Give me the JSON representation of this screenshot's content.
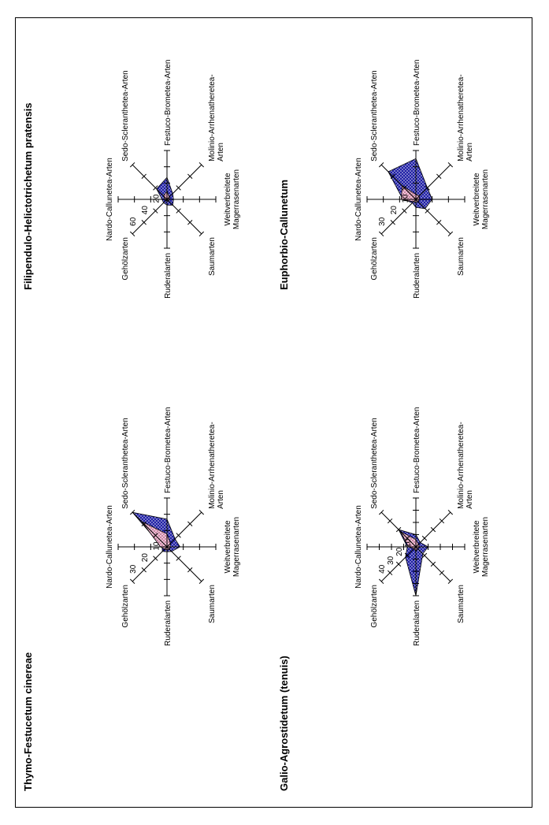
{
  "chart_data": [
    {
      "type": "radar",
      "title": "Thymo-Festucetum cinereae",
      "axes": [
        "Nardo-Callunetea-Arten",
        "Sedo-Scleranthetea-Arten",
        "Festuco-Brometea-Arten",
        "Molinio-Arrhenatheretea-Arten",
        "Weitverbreitete Magerrasenarten",
        "Saumarten",
        "Ruderalarten",
        "Gehölzarten"
      ],
      "ticks": [
        "10",
        "20",
        "30"
      ],
      "rmax": 30,
      "series": [
        {
          "fill": "#1f1fa5",
          "values": [
            3,
            30,
            17,
            7,
            8,
            4,
            3,
            4
          ]
        },
        {
          "fill": "#f2c2d8",
          "values": [
            4,
            22,
            8,
            3,
            2,
            2,
            2,
            2
          ]
        }
      ]
    },
    {
      "type": "radar",
      "title": "Filipendulo-Helictotrichetum pratensis",
      "axes": [
        "Nardo-Callunetea-Arten",
        "Sedo-Scleranthetea-Arten",
        "Festuco-Brometea-Arten",
        "Molinio-Arrhenatheretea-Arten",
        "Weitverbreitete Magerrasenarten",
        "Saumarten",
        "Ruderalarten",
        "Gehölzarten"
      ],
      "ticks": [
        "20",
        "40",
        "60"
      ],
      "rmax": 60,
      "series": [
        {
          "fill": "#1f1fa5",
          "values": [
            6,
            18,
            27,
            10,
            8,
            10,
            7,
            6
          ]
        },
        {
          "fill": "#f2c2d8",
          "values": [
            3,
            6,
            10,
            4,
            3,
            3,
            2,
            2
          ]
        }
      ]
    },
    {
      "type": "radar",
      "title": "Galio-Agrostidetum (tenuis)",
      "axes": [
        "Nardo-Callunetea-Arten",
        "Sedo-Scleranthetea-Arten",
        "Festuco-Brometea-Arten",
        "Molinio-Arrhenatheretea-Arten",
        "Weitverbreitete Magerrasenarten",
        "Saumarten",
        "Ruderalarten",
        "Gehölzarten"
      ],
      "ticks": [
        "10",
        "20",
        "30",
        "40"
      ],
      "rmax": 40,
      "series": [
        {
          "fill": "#1f1fa5",
          "values": [
            7,
            20,
            10,
            5,
            10,
            8,
            40,
            12
          ]
        },
        {
          "fill": "#f2c2d8",
          "values": [
            6,
            18,
            6,
            3,
            3,
            2,
            4,
            2
          ]
        }
      ]
    },
    {
      "type": "radar",
      "title": "Euphorbio-Callunetum",
      "axes": [
        "Nardo-Callunetea-Arten",
        "Sedo-Scleranthetea-Arten",
        "Festuco-Brometea-Arten",
        "Molinio-Arrhenatheretea-Arten",
        "Weitverbreitete Magerrasenarten",
        "Saumarten",
        "Ruderalarten",
        "Gehölzarten"
      ],
      "ticks": [
        "10",
        "20",
        "30"
      ],
      "rmax": 30,
      "series": [
        {
          "fill": "#1f1fa5",
          "values": [
            8,
            24,
            25,
            10,
            10,
            8,
            5,
            3
          ]
        },
        {
          "fill": "#f2c2d8",
          "values": [
            9,
            12,
            3,
            3,
            2,
            2,
            2,
            2
          ]
        }
      ]
    }
  ]
}
